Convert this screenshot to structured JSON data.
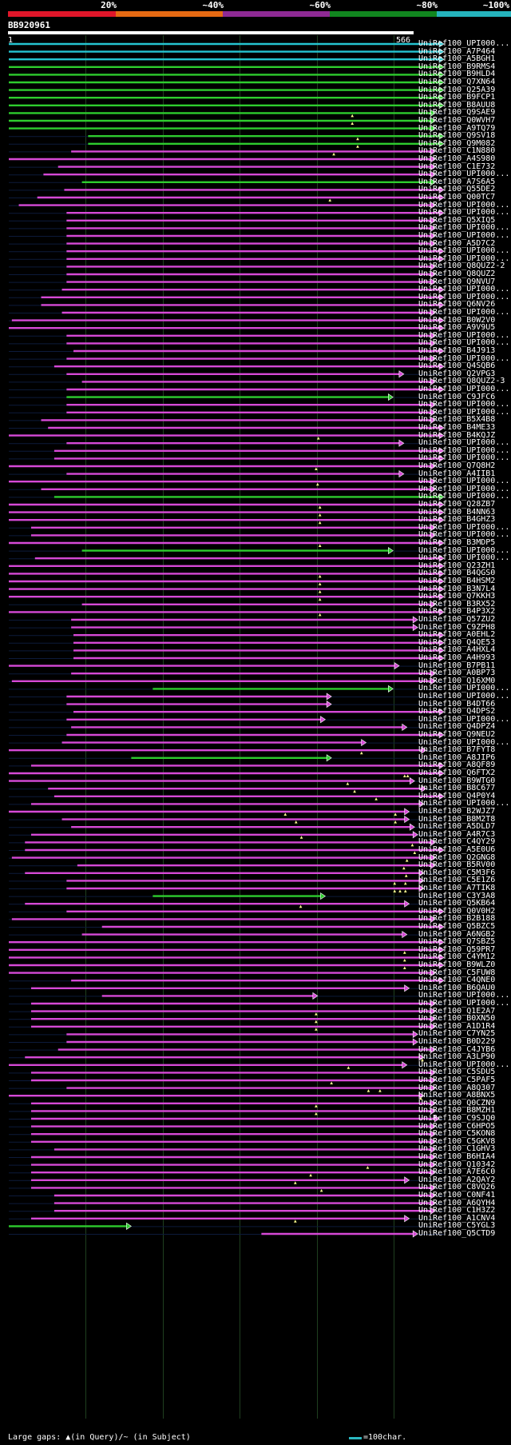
{
  "legend": [
    {
      "label": "20%",
      "color": "#e0162a"
    },
    {
      "label": "~40%",
      "color": "#e66a13"
    },
    {
      "label": "~60%",
      "color": "#8e2a94"
    },
    {
      "label": "~80%",
      "color": "#11861f"
    },
    {
      "label": "~100%",
      "color": "#25b4bd"
    }
  ],
  "query": {
    "name": "BB920961",
    "start": "1",
    "end": "566"
  },
  "footer": {
    "gaps_text": "Large gaps: ▲(in Query)/~ (in Subject)",
    "scale_text": "=100char."
  },
  "hits": [
    {
      "label": "UniRef100_UPI000...",
      "s": 1,
      "e": 566,
      "c": "cyan"
    },
    {
      "label": "UniRef100_A7P464",
      "s": 1,
      "e": 566,
      "c": "cyan"
    },
    {
      "label": "UniRef100_A5BGH1",
      "s": 1,
      "e": 566,
      "c": "cyan"
    },
    {
      "label": "UniRef100_B9RMS4",
      "s": 1,
      "e": 566,
      "c": "green"
    },
    {
      "label": "UniRef100_B9HLD4",
      "s": 1,
      "e": 566,
      "c": "green"
    },
    {
      "label": "UniRef100_Q7XN64",
      "s": 1,
      "e": 566,
      "c": "green"
    },
    {
      "label": "UniRef100_Q25A39",
      "s": 1,
      "e": 566,
      "c": "green"
    },
    {
      "label": "UniRef100_B9FCP1",
      "s": 1,
      "e": 566,
      "c": "green"
    },
    {
      "label": "UniRef100_B8AUU8",
      "s": 1,
      "e": 566,
      "c": "green"
    },
    {
      "label": "UniRef100_Q9SAE9",
      "s": 1,
      "e": 555,
      "c": "green",
      "gaps": [
        447
      ]
    },
    {
      "label": "UniRef100_Q0WVH7",
      "s": 1,
      "e": 555,
      "c": "green",
      "gaps": [
        447
      ]
    },
    {
      "label": "UniRef100_A9TQ79",
      "s": 1,
      "e": 555,
      "c": "green"
    },
    {
      "label": "UniRef100_Q9SV18",
      "s": 104,
      "e": 566,
      "c": "green",
      "gaps": [
        454
      ]
    },
    {
      "label": "UniRef100_Q9M082",
      "s": 104,
      "e": 566,
      "c": "green",
      "gaps": [
        454
      ]
    },
    {
      "label": "UniRef100_C1N880",
      "s": 82,
      "e": 555,
      "c": "magenta",
      "gaps": [
        423
      ]
    },
    {
      "label": "UniRef100_A4S980",
      "s": 1,
      "e": 555,
      "c": "magenta"
    },
    {
      "label": "UniRef100_C1E732",
      "s": 65,
      "e": 555,
      "c": "magenta"
    },
    {
      "label": "UniRef100_UPI000...",
      "s": 46,
      "e": 555,
      "c": "magenta"
    },
    {
      "label": "UniRef100_A7S6A5",
      "s": 96,
      "e": 555,
      "c": "green"
    },
    {
      "label": "UniRef100_Q55DE2",
      "s": 73,
      "e": 566,
      "c": "magenta"
    },
    {
      "label": "UniRef100_Q00TC7",
      "s": 38,
      "e": 566,
      "c": "magenta",
      "gaps": [
        418
      ]
    },
    {
      "label": "UniRef100_UPI000...",
      "s": 14,
      "e": 555,
      "c": "magenta"
    },
    {
      "label": "UniRef100_UPI000...",
      "s": 76,
      "e": 566,
      "c": "magenta"
    },
    {
      "label": "UniRef100_Q5XIQ5",
      "s": 76,
      "e": 555,
      "c": "magenta"
    },
    {
      "label": "UniRef100_UPI000...",
      "s": 76,
      "e": 555,
      "c": "magenta"
    },
    {
      "label": "UniRef100_UPI000...",
      "s": 76,
      "e": 555,
      "c": "magenta"
    },
    {
      "label": "UniRef100_A5D7C2",
      "s": 76,
      "e": 555,
      "c": "magenta"
    },
    {
      "label": "UniRef100_UPI000...",
      "s": 76,
      "e": 566,
      "c": "magenta"
    },
    {
      "label": "UniRef100_UPI000...",
      "s": 76,
      "e": 566,
      "c": "magenta"
    },
    {
      "label": "UniRef100_Q8QUZ2-2",
      "s": 76,
      "e": 555,
      "c": "magenta"
    },
    {
      "label": "UniRef100_Q8QUZ2",
      "s": 76,
      "e": 555,
      "c": "magenta"
    },
    {
      "label": "UniRef100_Q9NVU7",
      "s": 76,
      "e": 555,
      "c": "magenta"
    },
    {
      "label": "UniRef100_UPI000...",
      "s": 70,
      "e": 566,
      "c": "magenta"
    },
    {
      "label": "UniRef100_UPI000...",
      "s": 43,
      "e": 566,
      "c": "magenta"
    },
    {
      "label": "UniRef100_Q6NV26",
      "s": 43,
      "e": 566,
      "c": "magenta"
    },
    {
      "label": "UniRef100_UPI000...",
      "s": 70,
      "e": 555,
      "c": "magenta"
    },
    {
      "label": "UniRef100_B0W2V0",
      "s": 5,
      "e": 566,
      "c": "magenta"
    },
    {
      "label": "UniRef100_A9V9U5",
      "s": 1,
      "e": 566,
      "c": "magenta"
    },
    {
      "label": "UniRef100_UPI000...",
      "s": 76,
      "e": 555,
      "c": "magenta"
    },
    {
      "label": "UniRef100_UPI000...",
      "s": 76,
      "e": 555,
      "c": "magenta"
    },
    {
      "label": "UniRef100_B4J913",
      "s": 85,
      "e": 566,
      "c": "magenta"
    },
    {
      "label": "UniRef100_UPI000...",
      "s": 76,
      "e": 555,
      "c": "magenta"
    },
    {
      "label": "UniRef100_Q4SQB6",
      "s": 60,
      "e": 566,
      "c": "magenta"
    },
    {
      "label": "UniRef100_Q2VPG3",
      "s": 76,
      "e": 514,
      "c": "magenta"
    },
    {
      "label": "UniRef100_Q8QUZ2-3",
      "s": 96,
      "e": 555,
      "c": "magenta"
    },
    {
      "label": "UniRef100_UPI000...",
      "s": 76,
      "e": 566,
      "c": "magenta"
    },
    {
      "label": "UniRef100_C9JFC6",
      "s": 76,
      "e": 500,
      "c": "green"
    },
    {
      "label": "UniRef100_UPI000...",
      "s": 76,
      "e": 555,
      "c": "magenta"
    },
    {
      "label": "UniRef100_UPI000...",
      "s": 76,
      "e": 555,
      "c": "magenta"
    },
    {
      "label": "UniRef100_B5X4B8",
      "s": 43,
      "e": 555,
      "c": "magenta"
    },
    {
      "label": "UniRef100_B4ME33",
      "s": 52,
      "e": 566,
      "c": "magenta"
    },
    {
      "label": "UniRef100_B4KQJZ",
      "s": 1,
      "e": 566,
      "c": "magenta",
      "gaps": [
        403
      ]
    },
    {
      "label": "UniRef100_UPI000...",
      "s": 76,
      "e": 514,
      "c": "magenta"
    },
    {
      "label": "UniRef100_UPI000...",
      "s": 60,
      "e": 566,
      "c": "magenta"
    },
    {
      "label": "UniRef100_UPI000...",
      "s": 60,
      "e": 566,
      "c": "magenta"
    },
    {
      "label": "UniRef100_Q7Q8H2",
      "s": 1,
      "e": 555,
      "c": "magenta",
      "gaps": [
        400
      ]
    },
    {
      "label": "UniRef100_A4IIB1",
      "s": 76,
      "e": 514,
      "c": "magenta"
    },
    {
      "label": "UniRef100_UPI000...",
      "s": 1,
      "e": 555,
      "c": "magenta",
      "gaps": [
        402
      ]
    },
    {
      "label": "UniRef100_UPI000...",
      "s": 43,
      "e": 555,
      "c": "magenta"
    },
    {
      "label": "UniRef100_UPI000...",
      "s": 60,
      "e": 566,
      "c": "green"
    },
    {
      "label": "UniRef100_Q28ZB7",
      "s": 1,
      "e": 566,
      "c": "magenta",
      "gaps": [
        405
      ]
    },
    {
      "label": "UniRef100_B4NN63",
      "s": 1,
      "e": 566,
      "c": "magenta",
      "gaps": [
        405
      ]
    },
    {
      "label": "UniRef100_B4GHZ3",
      "s": 1,
      "e": 566,
      "c": "magenta",
      "gaps": [
        405
      ]
    },
    {
      "label": "UniRef100_UPI000...",
      "s": 30,
      "e": 555,
      "c": "magenta"
    },
    {
      "label": "UniRef100_UPI000...",
      "s": 30,
      "e": 555,
      "c": "magenta"
    },
    {
      "label": "UniRef100_B3MDP5",
      "s": 1,
      "e": 566,
      "c": "magenta",
      "gaps": [
        405
      ]
    },
    {
      "label": "UniRef100_UPI000...",
      "s": 96,
      "e": 500,
      "c": "green"
    },
    {
      "label": "UniRef100_UPI000...",
      "s": 35,
      "e": 566,
      "c": "magenta"
    },
    {
      "label": "UniRef100_Q23ZH1",
      "s": 1,
      "e": 566,
      "c": "magenta"
    },
    {
      "label": "UniRef100_B4QGS0",
      "s": 1,
      "e": 566,
      "c": "magenta",
      "gaps": [
        405
      ]
    },
    {
      "label": "UniRef100_B4HSM2",
      "s": 1,
      "e": 566,
      "c": "magenta",
      "gaps": [
        405
      ]
    },
    {
      "label": "UniRef100_B3N7L4",
      "s": 1,
      "e": 566,
      "c": "magenta",
      "gaps": [
        405
      ]
    },
    {
      "label": "UniRef100_Q7KKH3",
      "s": 1,
      "e": 566,
      "c": "magenta",
      "gaps": [
        405
      ]
    },
    {
      "label": "UniRef100_B3RX52",
      "s": 96,
      "e": 555,
      "c": "magenta"
    },
    {
      "label": "UniRef100_B4P3X2",
      "s": 1,
      "e": 566,
      "c": "magenta",
      "gaps": [
        405
      ]
    },
    {
      "label": "UniRef100_Q57ZU2",
      "s": 82,
      "e": 532,
      "c": "magenta"
    },
    {
      "label": "UniRef100_C9ZPH8",
      "s": 82,
      "e": 532,
      "c": "magenta"
    },
    {
      "label": "UniRef100_A0EHL2",
      "s": 85,
      "e": 566,
      "c": "magenta"
    },
    {
      "label": "UniRef100_Q4QE53",
      "s": 85,
      "e": 566,
      "c": "magenta"
    },
    {
      "label": "UniRef100_A4HXL4",
      "s": 85,
      "e": 566,
      "c": "magenta"
    },
    {
      "label": "UniRef100_A4H993",
      "s": 85,
      "e": 566,
      "c": "magenta"
    },
    {
      "label": "UniRef100_B7PB11",
      "s": 1,
      "e": 508,
      "c": "magenta"
    },
    {
      "label": "UniRef100_A0BP73",
      "s": 82,
      "e": 555,
      "c": "magenta"
    },
    {
      "label": "UniRef100_Q16XM0",
      "s": 5,
      "e": 555,
      "c": "magenta"
    },
    {
      "label": "UniRef100_UPI000...",
      "s": 188,
      "e": 500,
      "c": "green"
    },
    {
      "label": "UniRef100_UPI000...",
      "s": 76,
      "e": 420,
      "c": "magenta"
    },
    {
      "label": "UniRef100_B4DT66",
      "s": 76,
      "e": 420,
      "c": "magenta"
    },
    {
      "label": "UniRef100_Q4DPS2",
      "s": 85,
      "e": 566,
      "c": "magenta"
    },
    {
      "label": "UniRef100_UPI000...",
      "s": 76,
      "e": 412,
      "c": "magenta"
    },
    {
      "label": "UniRef100_Q4DPZ4",
      "s": 82,
      "e": 518,
      "c": "magenta"
    },
    {
      "label": "UniRef100_Q9NEU2",
      "s": 76,
      "e": 566,
      "c": "magenta"
    },
    {
      "label": "UniRef100_UPI000...",
      "s": 70,
      "e": 465,
      "c": "magenta"
    },
    {
      "label": "UniRef100_B7FYT8",
      "s": 1,
      "e": 543,
      "c": "magenta",
      "gaps": [
        459
      ]
    },
    {
      "label": "UniRef100_A8JIP6",
      "s": 160,
      "e": 420,
      "c": "green"
    },
    {
      "label": "UniRef100_A8QF89",
      "s": 30,
      "e": 566,
      "c": "magenta"
    },
    {
      "label": "UniRef100_Q6FTX2",
      "s": 1,
      "e": 566,
      "c": "magenta",
      "gaps": [
        515,
        519
      ]
    },
    {
      "label": "UniRef100_B9WTG0",
      "s": 1,
      "e": 528,
      "c": "magenta",
      "gaps": [
        441
      ]
    },
    {
      "label": "UniRef100_B8C677",
      "s": 52,
      "e": 543,
      "c": "magenta",
      "gaps": [
        450
      ]
    },
    {
      "label": "UniRef100_Q4P0Y4",
      "s": 60,
      "e": 566,
      "c": "magenta",
      "gaps": [
        478
      ]
    },
    {
      "label": "UniRef100_UPI000...",
      "s": 30,
      "e": 540,
      "c": "magenta"
    },
    {
      "label": "UniRef100_B2WJZ7",
      "s": 1,
      "e": 521,
      "c": "magenta",
      "gaps": [
        360,
        503
      ]
    },
    {
      "label": "UniRef100_B8M2T8",
      "s": 70,
      "e": 521,
      "c": "magenta",
      "gaps": [
        374,
        503
      ]
    },
    {
      "label": "UniRef100_A5DLD7",
      "s": 82,
      "e": 528,
      "c": "magenta"
    },
    {
      "label": "UniRef100_A4R7C3",
      "s": 30,
      "e": 532,
      "c": "magenta",
      "gaps": [
        381
      ]
    },
    {
      "label": "UniRef100_C4QY29",
      "s": 22,
      "e": 555,
      "c": "magenta",
      "gaps": [
        525
      ]
    },
    {
      "label": "UniRef100_A5E0U6",
      "s": 22,
      "e": 566,
      "c": "magenta",
      "gaps": [
        528
      ]
    },
    {
      "label": "UniRef100_Q2GNG8",
      "s": 5,
      "e": 555,
      "c": "magenta",
      "gaps": [
        518
      ]
    },
    {
      "label": "UniRef100_B5RV00",
      "s": 90,
      "e": 555,
      "c": "magenta",
      "gaps": [
        514
      ]
    },
    {
      "label": "UniRef100_C5M3F6",
      "s": 22,
      "e": 540,
      "c": "magenta",
      "gaps": [
        517
      ]
    },
    {
      "label": "UniRef100_C5E1Z6",
      "s": 76,
      "e": 540,
      "c": "magenta",
      "gaps": [
        502,
        516
      ]
    },
    {
      "label": "UniRef100_A7TIK8",
      "s": 76,
      "e": 540,
      "c": "magenta",
      "gaps": [
        502,
        509,
        516
      ]
    },
    {
      "label": "UniRef100_C3Y3A8",
      "s": 188,
      "e": 412,
      "c": "green"
    },
    {
      "label": "UniRef100_Q5KB64",
      "s": 22,
      "e": 521,
      "c": "magenta",
      "gaps": [
        380
      ]
    },
    {
      "label": "UniRef100_Q0V0H2",
      "s": 76,
      "e": 566,
      "c": "magenta"
    },
    {
      "label": "UniRef100_B2B188",
      "s": 5,
      "e": 555,
      "c": "magenta"
    },
    {
      "label": "UniRef100_Q5BZC5",
      "s": 122,
      "e": 566,
      "c": "magenta"
    },
    {
      "label": "UniRef100_A6NGB2",
      "s": 96,
      "e": 518,
      "c": "magenta"
    },
    {
      "label": "UniRef100_Q7SBZ5",
      "s": 1,
      "e": 566,
      "c": "magenta"
    },
    {
      "label": "UniRef100_Q59PR7",
      "s": 1,
      "e": 566,
      "c": "magenta",
      "gaps": [
        515
      ]
    },
    {
      "label": "UniRef100_C4YM12",
      "s": 1,
      "e": 566,
      "c": "magenta",
      "gaps": [
        515
      ]
    },
    {
      "label": "UniRef100_B9WLZ0",
      "s": 1,
      "e": 566,
      "c": "magenta",
      "gaps": [
        515
      ]
    },
    {
      "label": "UniRef100_C5FUW8",
      "s": 1,
      "e": 555,
      "c": "magenta"
    },
    {
      "label": "UniRef100_C4QNE0",
      "s": 82,
      "e": 566,
      "c": "magenta"
    },
    {
      "label": "UniRef100_B6QAU0",
      "s": 30,
      "e": 521,
      "c": "magenta"
    },
    {
      "label": "UniRef100_UPI000...",
      "s": 122,
      "e": 402,
      "c": "magenta"
    },
    {
      "label": "UniRef100_UPI000...",
      "s": 30,
      "e": 555,
      "c": "magenta"
    },
    {
      "label": "UniRef100_Q1E2A7",
      "s": 30,
      "e": 555,
      "c": "magenta",
      "gaps": [
        400
      ]
    },
    {
      "label": "UniRef100_B0XN50",
      "s": 30,
      "e": 555,
      "c": "magenta",
      "gaps": [
        400
      ]
    },
    {
      "label": "UniRef100_A1D1R4",
      "s": 30,
      "e": 555,
      "c": "magenta",
      "gaps": [
        400
      ]
    },
    {
      "label": "UniRef100_C7YN25",
      "s": 76,
      "e": 532,
      "c": "magenta"
    },
    {
      "label": "UniRef100_B0D229",
      "s": 76,
      "e": 532,
      "c": "magenta"
    },
    {
      "label": "UniRef100_C4JYB6",
      "s": 65,
      "e": 555,
      "c": "magenta"
    },
    {
      "label": "UniRef100_A3LP90",
      "s": 22,
      "e": 540,
      "c": "magenta",
      "gaps": [
        538
      ]
    },
    {
      "label": "UniRef100_UPI000...",
      "s": 1,
      "e": 518,
      "c": "magenta",
      "gaps": [
        442
      ]
    },
    {
      "label": "UniRef100_C5SDU5",
      "s": 30,
      "e": 555,
      "c": "magenta"
    },
    {
      "label": "UniRef100_C5PAF5",
      "s": 30,
      "e": 555,
      "c": "magenta",
      "gaps": [
        420
      ]
    },
    {
      "label": "UniRef100_A8Q307",
      "s": 76,
      "e": 555,
      "c": "magenta",
      "gaps": [
        468,
        483
      ]
    },
    {
      "label": "UniRef100_A8BNX5",
      "s": 1,
      "e": 540,
      "c": "magenta",
      "gaps": [
        536
      ]
    },
    {
      "label": "UniRef100_Q0CZN9",
      "s": 30,
      "e": 555,
      "c": "magenta",
      "gaps": [
        400
      ]
    },
    {
      "label": "UniRef100_B8MZH1",
      "s": 30,
      "e": 555,
      "c": "magenta",
      "gaps": [
        400
      ]
    },
    {
      "label": "UniRef100_C9SJQ0",
      "s": 30,
      "e": 560,
      "c": "magenta"
    },
    {
      "label": "UniRef100_C6HPO5",
      "s": 30,
      "e": 555,
      "c": "magenta"
    },
    {
      "label": "UniRef100_C5KON8",
      "s": 30,
      "e": 555,
      "c": "magenta"
    },
    {
      "label": "UniRef100_C5GKV8",
      "s": 30,
      "e": 555,
      "c": "magenta"
    },
    {
      "label": "UniRef100_C1GHV3",
      "s": 60,
      "e": 555,
      "c": "magenta"
    },
    {
      "label": "UniRef100_B6HIA4",
      "s": 30,
      "e": 555,
      "c": "magenta"
    },
    {
      "label": "UniRef100_Q10342",
      "s": 30,
      "e": 555,
      "c": "magenta",
      "gaps": [
        467
      ]
    },
    {
      "label": "UniRef100_A7E6C0",
      "s": 30,
      "e": 555,
      "c": "magenta",
      "gaps": [
        393
      ]
    },
    {
      "label": "UniRef100_A2QAY2",
      "s": 30,
      "e": 521,
      "c": "magenta",
      "gaps": [
        373
      ]
    },
    {
      "label": "UniRef100_C8VQ26",
      "s": 30,
      "e": 555,
      "c": "magenta",
      "gaps": [
        407
      ]
    },
    {
      "label": "UniRef100_C0NF41",
      "s": 60,
      "e": 555,
      "c": "magenta"
    },
    {
      "label": "UniRef100_A6QYH4",
      "s": 60,
      "e": 555,
      "c": "magenta"
    },
    {
      "label": "UniRef100_C1H3Z2",
      "s": 60,
      "e": 555,
      "c": "magenta"
    },
    {
      "label": "UniRef100_A1CNV4",
      "s": 30,
      "e": 521,
      "c": "magenta",
      "gaps": [
        373
      ]
    },
    {
      "label": "UniRef100_C5YGL3",
      "s": 1,
      "e": 160,
      "c": "green"
    },
    {
      "label": "UniRef100_Q5CTD9",
      "s": 329,
      "e": 532,
      "c": "magenta"
    }
  ]
}
